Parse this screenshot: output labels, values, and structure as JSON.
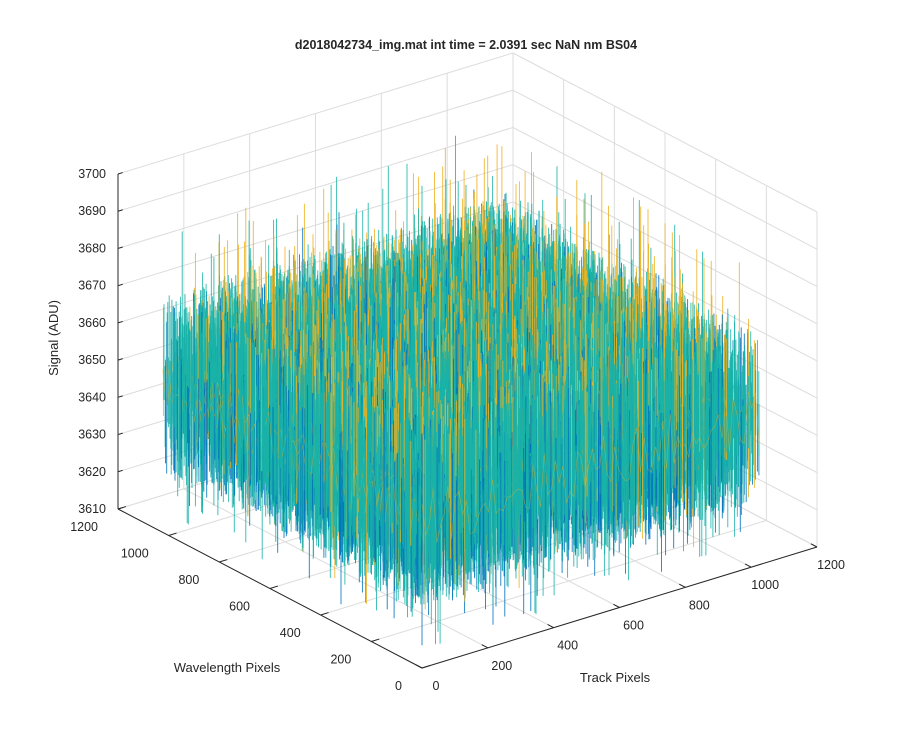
{
  "chart_data": {
    "type": "surface",
    "title": "d2018042734_img.mat int time = 2.0391 sec  NaN nm BS04",
    "xlabel": "Track Pixels",
    "ylabel": "Wavelength Pixels",
    "zlabel": "Signal (ADU)",
    "xlim": [
      0,
      1200
    ],
    "ylim": [
      0,
      1200
    ],
    "zlim": [
      3610,
      3700
    ],
    "xticks": [
      "0",
      "200",
      "400",
      "600",
      "800",
      "1000",
      "1200"
    ],
    "yticks": [
      "0",
      "200",
      "400",
      "600",
      "800",
      "1000",
      "1200"
    ],
    "zticks": [
      "3610",
      "3620",
      "3630",
      "3640",
      "3650",
      "3660",
      "3670",
      "3680",
      "3690",
      "3700"
    ],
    "surface": {
      "x_range": [
        0,
        1024
      ],
      "y_range": [
        0,
        1024
      ],
      "mean_signal": 3650,
      "noise_range": [
        3620,
        3695
      ]
    },
    "colors": {
      "low": "#0072bd",
      "mid": "#1ab2a8",
      "high": "#edb120",
      "axis": "#262626",
      "grid": "#dcdcdc"
    },
    "grid": true,
    "legend": "none"
  }
}
